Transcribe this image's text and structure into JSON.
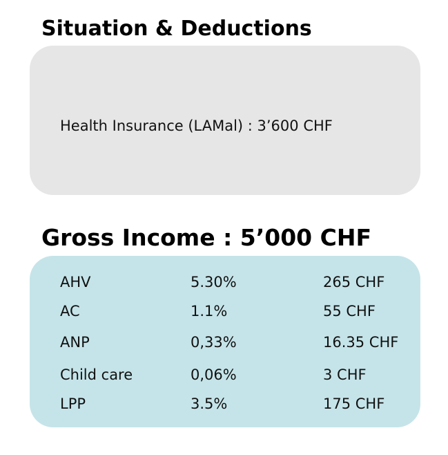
{
  "situation": {
    "title": "Situation & Deductions",
    "health_insurance": "Health Insurance (LAMal) : 3’600 CHF"
  },
  "income": {
    "title": "Gross Income : 5’000 CHF"
  },
  "deductions": [
    {
      "name": "AHV",
      "rate": "5.30%",
      "amount": "265 CHF"
    },
    {
      "name": "AC",
      "rate": "1.1%",
      "amount": "55 CHF"
    },
    {
      "name": "ANP",
      "rate": "0,33%",
      "amount": "16.35 CHF"
    },
    {
      "name": "Child care",
      "rate": "0,06%",
      "amount": "3 CHF"
    },
    {
      "name": "LPP",
      "rate": "3.5%",
      "amount": "175 CHF"
    }
  ],
  "colors": {
    "situation_panel": "#e6e6e6",
    "deductions_panel": "#c5e4e9"
  }
}
